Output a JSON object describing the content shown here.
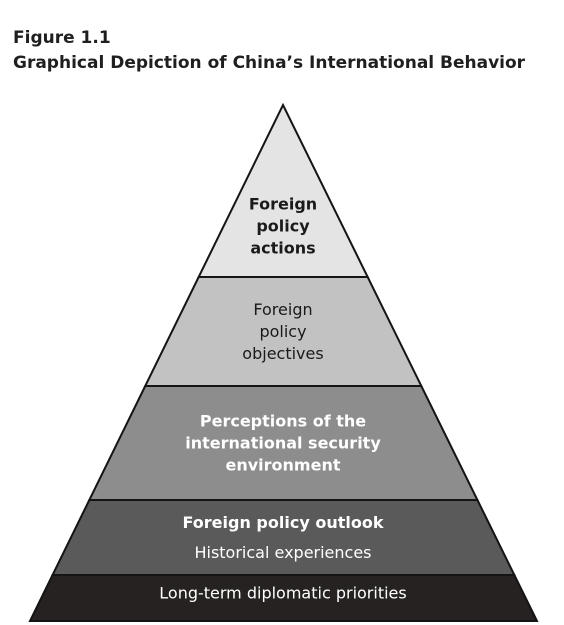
{
  "figure": {
    "label": "Figure 1.1",
    "title": "Graphical Depiction of China’s International Behavior"
  },
  "pyramid": {
    "tiers": [
      {
        "id": "foreign-policy-actions",
        "lines": [
          "Foreign",
          "policy",
          "actions"
        ],
        "fill": "#e4e4e4",
        "text_color": "#1a1a1a",
        "bold": true
      },
      {
        "id": "foreign-policy-objectives",
        "lines": [
          "Foreign",
          "policy",
          "objectives"
        ],
        "fill": "#c2c2c2",
        "text_color": "#1a1a1a",
        "bold": false
      },
      {
        "id": "perceptions-international-security",
        "lines": [
          "Perceptions of the",
          "international security",
          "environment"
        ],
        "fill": "#8d8d8d",
        "text_color": "#ffffff",
        "bold": true
      },
      {
        "id": "outlook-and-experiences",
        "lines": [
          "Foreign policy outlook",
          "Historical experiences"
        ],
        "fill": "#5a5a5a",
        "text_color": "#ffffff",
        "bold": [
          true,
          false
        ]
      },
      {
        "id": "long-term-diplomatic-priorities",
        "lines": [
          "Long-term diplomatic priorities"
        ],
        "fill": "#262222",
        "text_color": "#ffffff",
        "bold": false
      }
    ],
    "outline_color": "#141414"
  }
}
